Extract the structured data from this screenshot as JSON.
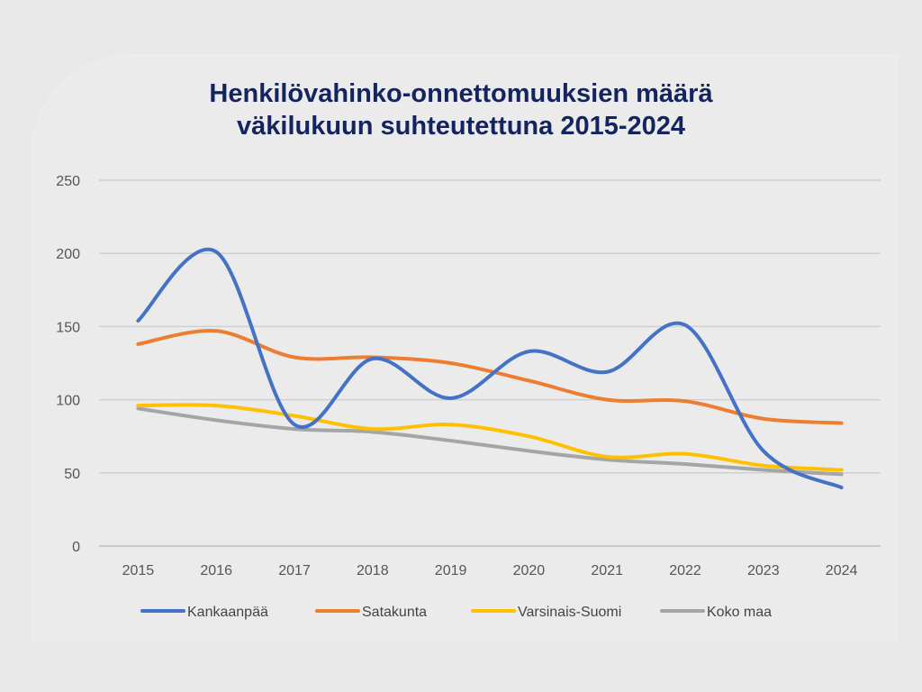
{
  "chart_data": {
    "type": "line",
    "title_lines": [
      "Henkilövahinko-onnettomuuksien määrä",
      "väkilukuun suhteutettuna 2015-2024"
    ],
    "x": [
      "2015",
      "2016",
      "2017",
      "2018",
      "2019",
      "2020",
      "2021",
      "2022",
      "2023",
      "2024"
    ],
    "ylim": [
      0,
      250
    ],
    "yticks": [
      "0",
      "50",
      "100",
      "150",
      "200",
      "250"
    ],
    "grid": true,
    "legend_position": "bottom",
    "series": [
      {
        "name": "Kankaanpää",
        "color": "#4472c4",
        "values": [
          154,
          201,
          83,
          128,
          101,
          133,
          119,
          151,
          65,
          40
        ]
      },
      {
        "name": "Satakunta",
        "color": "#ed7d31",
        "values": [
          138,
          147,
          129,
          129,
          125,
          113,
          100,
          99,
          87,
          84
        ]
      },
      {
        "name": "Varsinais-Suomi",
        "color": "#ffc000",
        "values": [
          96,
          96,
          89,
          80,
          83,
          75,
          61,
          63,
          55,
          52
        ]
      },
      {
        "name": "Koko maa",
        "color": "#a5a5a5",
        "values": [
          94,
          86,
          80,
          78,
          72,
          65,
          59,
          56,
          52,
          49
        ]
      }
    ]
  }
}
